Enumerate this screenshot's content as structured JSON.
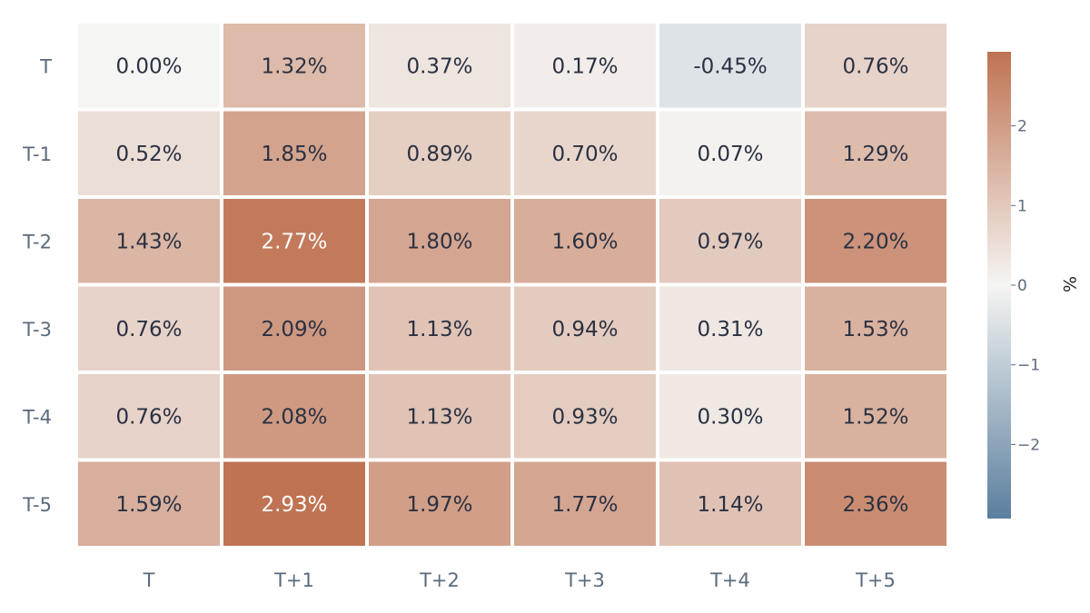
{
  "chart_data": {
    "type": "heatmap",
    "title": "",
    "xlabel": "",
    "ylabel": "",
    "x_categories": [
      "T",
      "T+1",
      "T+2",
      "T+3",
      "T+4",
      "T+5"
    ],
    "y_categories": [
      "T",
      "T-1",
      "T-2",
      "T-3",
      "T-4",
      "T-5"
    ],
    "values": [
      [
        0.0,
        1.32,
        0.37,
        0.17,
        -0.45,
        0.76
      ],
      [
        0.52,
        1.85,
        0.89,
        0.7,
        0.07,
        1.29
      ],
      [
        1.43,
        2.77,
        1.8,
        1.6,
        0.97,
        2.2
      ],
      [
        0.76,
        2.09,
        1.13,
        0.94,
        0.31,
        1.53
      ],
      [
        0.76,
        2.08,
        1.13,
        0.93,
        0.3,
        1.52
      ],
      [
        1.59,
        2.93,
        1.97,
        1.77,
        1.14,
        2.36
      ]
    ],
    "labels": [
      [
        "0.00%",
        "1.32%",
        "0.37%",
        "0.17%",
        "-0.45%",
        "0.76%"
      ],
      [
        "0.52%",
        "1.85%",
        "0.89%",
        "0.70%",
        "0.07%",
        "1.29%"
      ],
      [
        "1.43%",
        "2.77%",
        "1.80%",
        "1.60%",
        "0.97%",
        "2.20%"
      ],
      [
        "0.76%",
        "2.09%",
        "1.13%",
        "0.94%",
        "0.31%",
        "1.53%"
      ],
      [
        "0.76%",
        "2.08%",
        "1.13%",
        "0.93%",
        "0.30%",
        "1.52%"
      ],
      [
        "1.59%",
        "2.93%",
        "1.97%",
        "1.77%",
        "1.14%",
        "2.36%"
      ]
    ],
    "colorbar": {
      "title": "%",
      "range": [
        -2.93,
        2.93
      ],
      "ticks": [
        2,
        1,
        0,
        -1,
        -2
      ],
      "tick_labels": [
        "2",
        "1",
        "0",
        "−1",
        "−2"
      ]
    },
    "colors": {
      "negative": "#5b7f9e",
      "neutral": "#f5f5f3",
      "positive": "#bf7352",
      "text_dark": "#2a3142",
      "text_light": "#ffffff"
    },
    "grid": false,
    "legend": "colorbar-right"
  }
}
